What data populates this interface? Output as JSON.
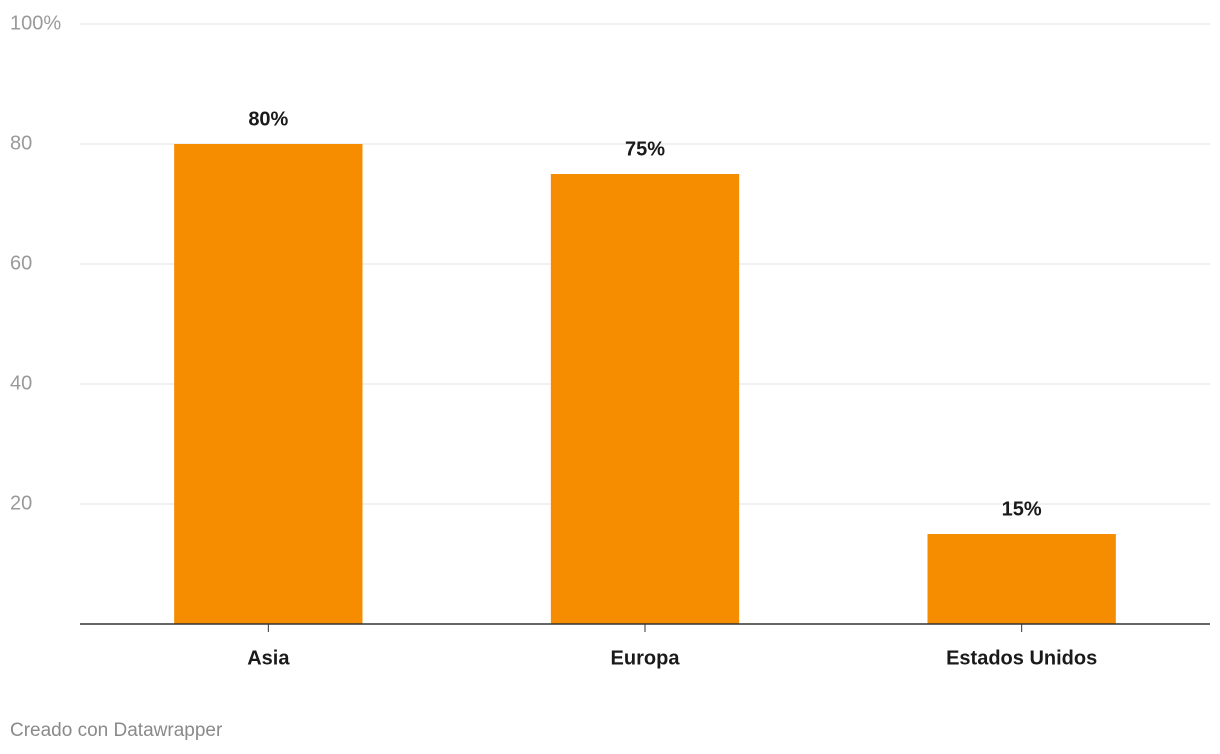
{
  "chart_data": {
    "type": "bar",
    "categories": [
      "Asia",
      "Europa",
      "Estados Unidos"
    ],
    "values": [
      80,
      75,
      15
    ],
    "value_labels": [
      "80%",
      "75%",
      "15%"
    ],
    "color": "#f68c00",
    "ylim": [
      0,
      100
    ],
    "yticks": [
      20,
      40,
      60,
      80,
      {
        "value": 100,
        "label": "100%"
      }
    ],
    "grid": true,
    "credit": "Creado con Datawrapper"
  }
}
